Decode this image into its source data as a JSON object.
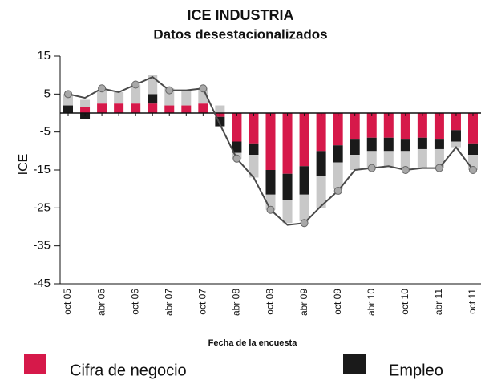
{
  "chart_data": {
    "type": "bar",
    "stacked": true,
    "title": "ICE INDUSTRIA",
    "subtitle": "Datos desestacionalizados",
    "y_label": "ICE",
    "x_label": "Fecha de la encuesta",
    "categories": [
      "oct 05",
      null,
      "abr 06",
      null,
      "oct 06",
      null,
      "abr 07",
      null,
      "oct 07",
      null,
      "abr 08",
      null,
      "oct 08",
      null,
      "abr 09",
      null,
      "oct 09",
      null,
      "abr 10",
      null,
      "oct 10",
      null,
      "abr 11",
      null,
      "oct 11"
    ],
    "series": [
      {
        "name": "Cifra de negocio",
        "color": "#d6194a",
        "values": [
          0,
          1.5,
          2.5,
          2.5,
          2.5,
          2.5,
          2,
          2,
          2.5,
          -1,
          -7.5,
          -8,
          -15,
          -16,
          -14,
          -10,
          -8.5,
          -7,
          -6.5,
          -6.5,
          -7,
          -6.5,
          -7,
          -4.5,
          -8
        ]
      },
      {
        "name": "Empleo",
        "color": "#1a1a1a",
        "values": [
          2,
          -1.5,
          0,
          0,
          0,
          2.5,
          0,
          0,
          0,
          -2.5,
          -3,
          -3,
          -6.5,
          -7,
          -7.5,
          -6.5,
          -4.5,
          -4,
          -3.5,
          -3.5,
          -3,
          -3,
          -2.5,
          -3,
          -3
        ]
      },
      {
        "color": "#c8c8c8",
        "values": [
          3,
          2,
          3.5,
          3,
          5,
          5,
          4.5,
          4,
          4,
          2,
          -1.5,
          -6,
          -4,
          -6,
          -7,
          -8.5,
          -7,
          -4,
          -4.5,
          -4,
          -5,
          -5,
          -5,
          -1.5,
          -4
        ]
      },
      {
        "type": "line",
        "color": "#4a4a4a",
        "values": [
          5,
          4,
          6.5,
          5.5,
          7.5,
          9.5,
          6,
          6,
          6.5,
          -3,
          -12,
          -17,
          -25.5,
          -29.5,
          -29,
          -24.5,
          -20.5,
          -15,
          -14.5,
          -14,
          -15,
          -14.5,
          -14.5,
          -9,
          -15
        ]
      }
    ],
    "ylim": [
      -45,
      15
    ],
    "yticks": [
      15,
      5,
      -5,
      -15,
      -25,
      -35,
      -45
    ]
  }
}
